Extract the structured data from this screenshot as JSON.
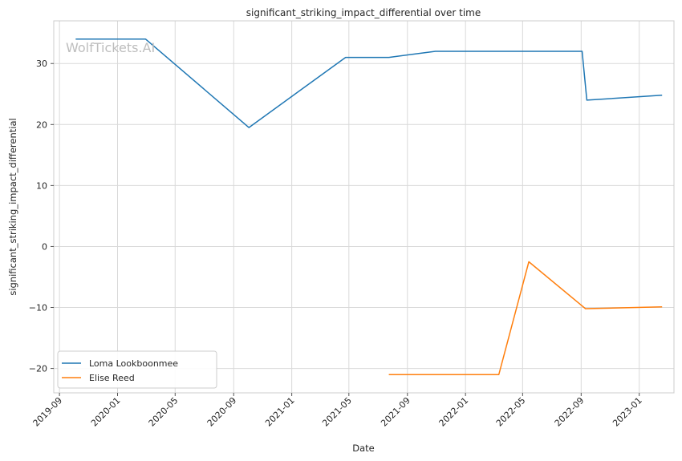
{
  "chart_data": {
    "type": "line",
    "title": "significant_striking_impact_differential over time",
    "xlabel": "Date",
    "ylabel": "significant_striking_impact_differential",
    "watermark": "WolfTickets.AI",
    "xlim": [
      "2019-08-20",
      "2023-03-15"
    ],
    "ylim": [
      -24,
      37
    ],
    "x_ticks": [
      "2019-09-01",
      "2020-01-01",
      "2020-05-01",
      "2020-09-01",
      "2021-01-01",
      "2021-05-01",
      "2021-09-01",
      "2022-01-01",
      "2022-05-01",
      "2022-09-01",
      "2023-01-01"
    ],
    "x_tick_labels": [
      "2019-09",
      "2020-01",
      "2020-05",
      "2020-09",
      "2021-01",
      "2021-05",
      "2021-09",
      "2022-01",
      "2022-05",
      "2022-09",
      "2023-01"
    ],
    "y_ticks": [
      -20,
      -10,
      0,
      10,
      20,
      30
    ],
    "y_tick_labels": [
      "−20",
      "−10",
      "0",
      "10",
      "20",
      "30"
    ],
    "grid": true,
    "legend_position": "lower-left",
    "series": [
      {
        "name": "Loma Lookboonmee",
        "color": "#1f77b4",
        "points": [
          {
            "x": "2019-10-05",
            "y": 34
          },
          {
            "x": "2020-02-29",
            "y": 34
          },
          {
            "x": "2020-10-03",
            "y": 19.5
          },
          {
            "x": "2021-04-24",
            "y": 31
          },
          {
            "x": "2021-07-24",
            "y": 31
          },
          {
            "x": "2021-10-30",
            "y": 32
          },
          {
            "x": "2022-09-03",
            "y": 32
          },
          {
            "x": "2022-09-13",
            "y": 24
          },
          {
            "x": "2023-02-18",
            "y": 24.8
          }
        ]
      },
      {
        "name": "Elise Reed",
        "color": "#ff7f0e",
        "points": [
          {
            "x": "2021-07-24",
            "y": -21
          },
          {
            "x": "2022-03-12",
            "y": -21
          },
          {
            "x": "2022-05-14",
            "y": -2.5
          },
          {
            "x": "2022-09-10",
            "y": -10.2
          },
          {
            "x": "2023-02-18",
            "y": -9.9
          }
        ]
      }
    ]
  }
}
